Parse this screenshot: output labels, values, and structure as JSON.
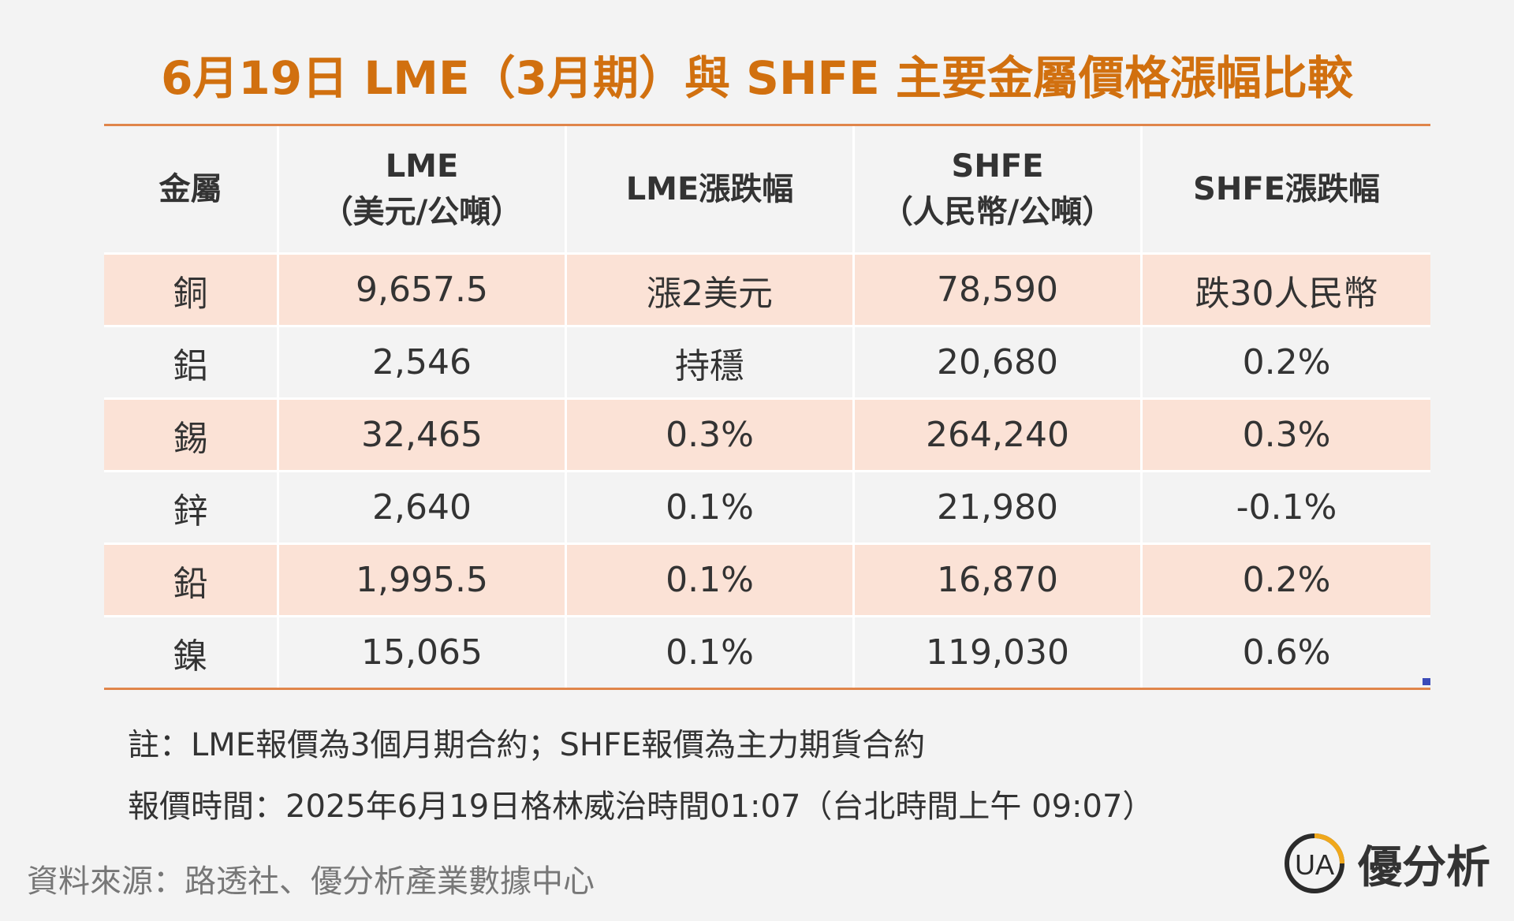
{
  "title": "6月19日 LME（3月期）與 SHFE 主要金屬價格漲幅比較",
  "chart_data": {
    "type": "table",
    "title": "6月19日 LME（3月期）與 SHFE 主要金屬價格漲幅比較",
    "columns": [
      {
        "line1": "金屬",
        "line2": ""
      },
      {
        "line1": "LME",
        "line2": "（美元/公噸）"
      },
      {
        "line1": "LME漲跌幅",
        "line2": ""
      },
      {
        "line1": "SHFE",
        "line2": "（人民幣/公噸）"
      },
      {
        "line1": "SHFE漲跌幅",
        "line2": ""
      }
    ],
    "rows": [
      [
        "銅",
        "9,657.5",
        "漲2美元",
        "78,590",
        "跌30人民幣"
      ],
      [
        "鋁",
        "2,546",
        "持穩",
        "20,680",
        "0.2%"
      ],
      [
        "錫",
        "32,465",
        "0.3%",
        "264,240",
        "0.3%"
      ],
      [
        "鋅",
        "2,640",
        "0.1%",
        "21,980",
        "-0.1%"
      ],
      [
        "鉛",
        "1,995.5",
        "0.1%",
        "16,870",
        "0.2%"
      ],
      [
        "鎳",
        "15,065",
        "0.1%",
        "119,030",
        "0.6%"
      ]
    ]
  },
  "notes": [
    "註：LME報價為3個月期合約；SHFE報價為主力期貨合約",
    "報價時間：2025年6月19日格林威治時間01:07（台北時間上午 09:07）"
  ],
  "source": "資料來源：路透社、優分析產業數據中心",
  "logo": {
    "text": "優分析",
    "mark_text": "UA",
    "icon": "ua-logo-icon"
  },
  "colors": {
    "accent": "#d1700f",
    "row_shade": "#fbe2d6",
    "rule": "#e0854a",
    "background": "#f3f3f3"
  }
}
